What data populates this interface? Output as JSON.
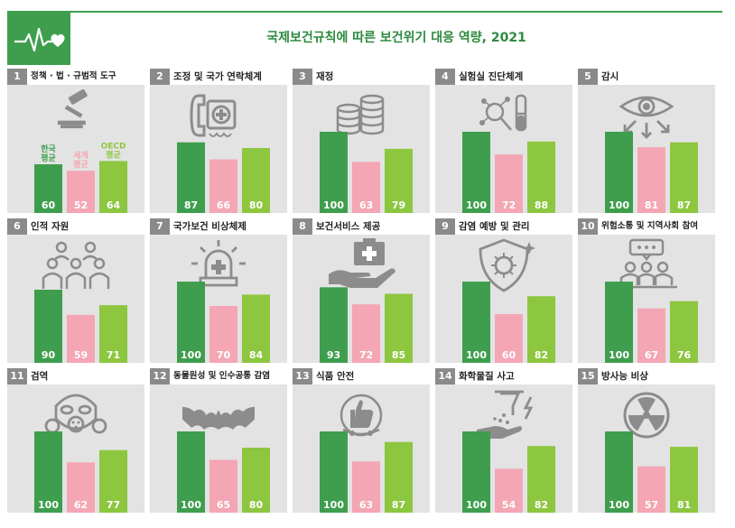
{
  "title": "국제보건규칙에 따른 보건위기 대응 역량, 2021",
  "colors": {
    "korea": "#3e9e4e",
    "world": "#f4a6b4",
    "oecd": "#8dc63f",
    "panel_bg": "#e3e3e3",
    "number_bg": "#8a8a8a",
    "icon": "#8c8c8c"
  },
  "legend": {
    "korea": "한국\n평균",
    "world": "세계\n평균",
    "oecd": "OECD\n평균"
  },
  "chart_data": {
    "type": "bar",
    "ylim": [
      0,
      100
    ],
    "series": [
      {
        "name": "한국 평균",
        "values": [
          60,
          87,
          100,
          100,
          100,
          90,
          100,
          93,
          100,
          100,
          100,
          100,
          100,
          100,
          100
        ]
      },
      {
        "name": "세계 평균",
        "values": [
          52,
          66,
          63,
          72,
          81,
          59,
          70,
          72,
          60,
          67,
          62,
          65,
          63,
          54,
          57
        ]
      },
      {
        "name": "OECD 평균",
        "values": [
          64,
          80,
          79,
          88,
          87,
          71,
          84,
          85,
          82,
          76,
          77,
          80,
          87,
          82,
          81
        ]
      }
    ],
    "categories": [
      "정책 · 법 · 규범적 도구",
      "조정 및 국가 연락체계",
      "재정",
      "실험실 진단체계",
      "감시",
      "인적 자원",
      "국가보건 비상체제",
      "보건서비스 제공",
      "감염 예방 및 관리",
      "위험소통 및 지역사회 참여",
      "검역",
      "동물원성 및 인수공통 감염",
      "식품 안전",
      "화학물질 사고",
      "방사능 비상"
    ]
  },
  "panels": [
    {
      "number": "1",
      "name": "정책 · 법 · 규범적 도구",
      "icon": "gavel-icon"
    },
    {
      "number": "2",
      "name": "조정 및 국가 연락체계",
      "icon": "phone-medical-icon"
    },
    {
      "number": "3",
      "name": "재정",
      "icon": "coins-icon"
    },
    {
      "number": "4",
      "name": "실험실 진단체계",
      "icon": "lab-icon"
    },
    {
      "number": "5",
      "name": "감시",
      "icon": "eye-icon"
    },
    {
      "number": "6",
      "name": "인적 자원",
      "icon": "people-icon"
    },
    {
      "number": "7",
      "name": "국가보건 비상체제",
      "icon": "siren-icon"
    },
    {
      "number": "8",
      "name": "보건서비스 제공",
      "icon": "medkit-hand-icon"
    },
    {
      "number": "9",
      "name": "감염 예방 및 관리",
      "icon": "virus-shield-icon"
    },
    {
      "number": "10",
      "name": "위험소통 및 지역사회 참여",
      "icon": "community-icon"
    },
    {
      "number": "11",
      "name": "검역",
      "icon": "gas-mask-icon"
    },
    {
      "number": "12",
      "name": "동물원성 및 인수공통 감염",
      "icon": "bat-icon"
    },
    {
      "number": "13",
      "name": "식품 안전",
      "icon": "food-safety-icon"
    },
    {
      "number": "14",
      "name": "화학물질 사고",
      "icon": "chemical-icon"
    },
    {
      "number": "15",
      "name": "방사능 비상",
      "icon": "radiation-icon"
    }
  ]
}
